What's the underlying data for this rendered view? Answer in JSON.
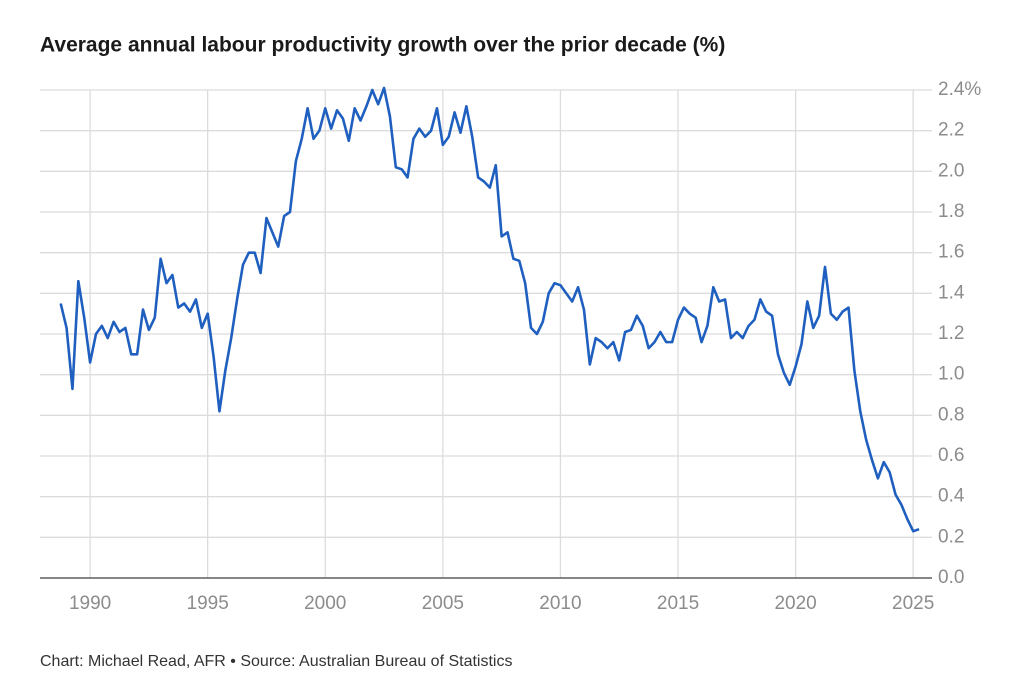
{
  "chart_data": {
    "type": "line",
    "title": "Average annual labour productivity growth over the prior decade (%)",
    "source": "Chart: Michael Read, AFR • Source: Australian Bureau of Statistics",
    "color": "#1f5fbf",
    "grid": true,
    "xlim": [
      1987.87,
      2025.8
    ],
    "xticks": [
      1990,
      1995,
      2000,
      2005,
      2010,
      2015,
      2020,
      2025
    ],
    "ylim": [
      0,
      2.4
    ],
    "yticks": [
      {
        "value": 0,
        "label": "0.0"
      },
      0.2,
      0.4,
      0.6,
      0.8,
      {
        "value": 1,
        "label": "1.0"
      },
      1.2,
      1.4,
      1.6,
      1.8,
      {
        "value": 2,
        "label": "2.0"
      },
      2.2,
      {
        "value": 2.4,
        "label": "2.4%"
      }
    ],
    "x": [
      1988.75,
      1989,
      1989.25,
      1989.5,
      1989.75,
      1990,
      1990.25,
      1990.5,
      1990.75,
      1991,
      1991.25,
      1991.5,
      1991.75,
      1992,
      1992.25,
      1992.5,
      1992.75,
      1993,
      1993.25,
      1993.5,
      1993.75,
      1994,
      1994.25,
      1994.5,
      1994.75,
      1995,
      1995.25,
      1995.5,
      1995.75,
      1996,
      1996.25,
      1996.5,
      1996.75,
      1997,
      1997.25,
      1997.5,
      1997.75,
      1998,
      1998.25,
      1998.5,
      1998.75,
      1999,
      1999.25,
      1999.5,
      1999.75,
      2000,
      2000.25,
      2000.5,
      2000.75,
      2001,
      2001.25,
      2001.5,
      2001.75,
      2002,
      2002.25,
      2002.5,
      2002.75,
      2003,
      2003.25,
      2003.5,
      2003.75,
      2004,
      2004.25,
      2004.5,
      2004.75,
      2005,
      2005.25,
      2005.5,
      2005.75,
      2006,
      2006.25,
      2006.5,
      2006.75,
      2007,
      2007.25,
      2007.5,
      2007.75,
      2008,
      2008.25,
      2008.5,
      2008.75,
      2009,
      2009.25,
      2009.5,
      2009.75,
      2010,
      2010.25,
      2010.5,
      2010.75,
      2011,
      2011.25,
      2011.5,
      2011.75,
      2012,
      2012.25,
      2012.5,
      2012.75,
      2013,
      2013.25,
      2013.5,
      2013.75,
      2014,
      2014.25,
      2014.5,
      2014.75,
      2015,
      2015.25,
      2015.5,
      2015.75,
      2016,
      2016.25,
      2016.5,
      2016.75,
      2017,
      2017.25,
      2017.5,
      2017.75,
      2018,
      2018.25,
      2018.5,
      2018.75,
      2019,
      2019.25,
      2019.5,
      2019.75,
      2020,
      2020.25,
      2020.5,
      2020.75,
      2021,
      2021.25,
      2021.5,
      2021.75,
      2022,
      2022.25,
      2022.5,
      2022.75,
      2023,
      2023.25,
      2023.5,
      2023.75,
      2024,
      2024.25,
      2024.5,
      2024.75,
      2025,
      2025.25
    ],
    "values": [
      1.35,
      1.23,
      0.93,
      1.46,
      1.28,
      1.06,
      1.2,
      1.24,
      1.18,
      1.26,
      1.21,
      1.23,
      1.1,
      1.1,
      1.32,
      1.22,
      1.28,
      1.57,
      1.45,
      1.49,
      1.33,
      1.35,
      1.31,
      1.37,
      1.23,
      1.3,
      1.09,
      0.82,
      1.02,
      1.18,
      1.37,
      1.54,
      1.6,
      1.6,
      1.5,
      1.77,
      1.7,
      1.63,
      1.78,
      1.8,
      2.05,
      2.16,
      2.31,
      2.16,
      2.2,
      2.31,
      2.21,
      2.3,
      2.26,
      2.15,
      2.31,
      2.25,
      2.32,
      2.4,
      2.33,
      2.41,
      2.27,
      2.02,
      2.01,
      1.97,
      2.16,
      2.21,
      2.17,
      2.2,
      2.31,
      2.13,
      2.17,
      2.29,
      2.19,
      2.32,
      2.17,
      1.97,
      1.95,
      1.92,
      2.03,
      1.68,
      1.7,
      1.57,
      1.56,
      1.45,
      1.23,
      1.2,
      1.26,
      1.4,
      1.45,
      1.44,
      1.4,
      1.36,
      1.43,
      1.32,
      1.05,
      1.18,
      1.16,
      1.13,
      1.16,
      1.07,
      1.21,
      1.22,
      1.29,
      1.24,
      1.13,
      1.16,
      1.21,
      1.16,
      1.16,
      1.27,
      1.33,
      1.3,
      1.28,
      1.16,
      1.24,
      1.43,
      1.36,
      1.37,
      1.18,
      1.21,
      1.18,
      1.24,
      1.27,
      1.37,
      1.31,
      1.29,
      1.1,
      1.01,
      0.95,
      1.04,
      1.15,
      1.36,
      1.23,
      1.29,
      1.53,
      1.3,
      1.27,
      1.31,
      1.33,
      1.02,
      0.82,
      0.68,
      0.58,
      0.49,
      0.57,
      0.52,
      0.41,
      0.36,
      0.29,
      0.23,
      0.24
    ]
  }
}
